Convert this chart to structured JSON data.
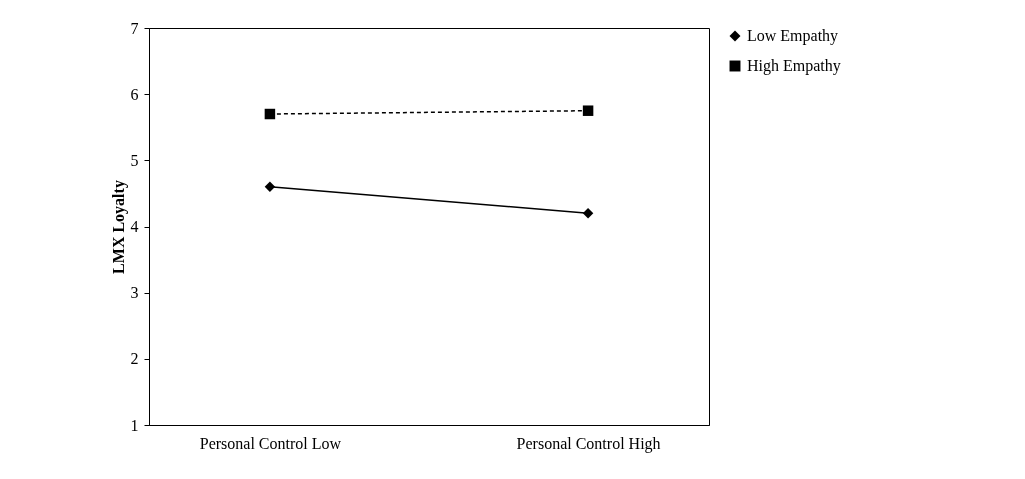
{
  "chart_data": {
    "type": "line",
    "ylabel": "LMX Loyalty",
    "categories": [
      "Personal Control Low",
      "Personal Control High"
    ],
    "series": [
      {
        "name": "Low Empathy",
        "color": "#000000",
        "marker": "diamond",
        "line_style": "solid",
        "values": [
          4.6,
          4.2
        ]
      },
      {
        "name": "High Empathy",
        "color": "#000000",
        "marker": "square",
        "line_style": "dashed",
        "values": [
          5.7,
          5.75
        ]
      }
    ],
    "ylim": [
      1,
      7
    ],
    "yticks": [
      1,
      2,
      3,
      4,
      5,
      6,
      7
    ],
    "grid": false,
    "legend": "right"
  }
}
